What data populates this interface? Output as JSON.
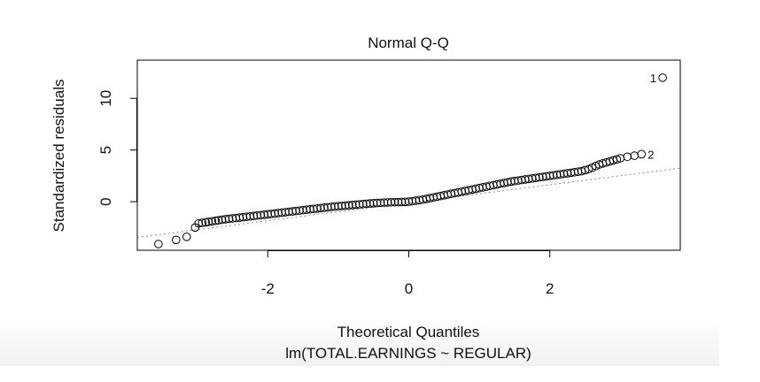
{
  "chart_data": {
    "type": "scatter",
    "title": "Normal Q-Q",
    "subtitle": "lm(TOTAL.EARNINGS ~ REGULAR)",
    "xlabel": "Theoretical Quantiles",
    "ylabel": "Standardized residuals",
    "xlim": [
      -3.85,
      3.85
    ],
    "ylim": [
      -4.7,
      13.7
    ],
    "x_ticks": [
      -2,
      0,
      2
    ],
    "x_tick_labels": [
      "-2",
      "0",
      "2"
    ],
    "y_ticks": [
      0,
      5,
      10
    ],
    "y_tick_labels": [
      "0",
      "5",
      "10"
    ],
    "grid": false,
    "reference_line": {
      "style": "dotted",
      "color": "#888888",
      "points": [
        [
          -3.85,
          -3.45
        ],
        [
          3.85,
          3.25
        ]
      ]
    },
    "series": [
      {
        "x": [
          -3.55,
          -3.3,
          -3.15,
          -3.03,
          -2.98,
          -2.93,
          -2.88,
          -2.84,
          -2.79,
          -2.74,
          -2.7,
          -2.65,
          -2.6,
          -2.55,
          -2.5,
          -2.45,
          -2.4,
          -2.35,
          -2.3,
          -2.25,
          -2.2,
          -2.15,
          -2.1,
          -2.05,
          -2.0,
          -1.95,
          -1.9,
          -1.85,
          -1.8,
          -1.75,
          -1.7,
          -1.65,
          -1.6,
          -1.55,
          -1.5,
          -1.45,
          -1.4,
          -1.35,
          -1.3,
          -1.25,
          -1.2,
          -1.15,
          -1.1,
          -1.05,
          -1.0,
          -0.95,
          -0.9,
          -0.85,
          -0.8,
          -0.75,
          -0.7,
          -0.65,
          -0.6,
          -0.55,
          -0.5,
          -0.45,
          -0.4,
          -0.35,
          -0.3,
          -0.25,
          -0.2,
          -0.15,
          -0.1,
          -0.05,
          0.0,
          0.05,
          0.1,
          0.15,
          0.2,
          0.25,
          0.3,
          0.35,
          0.4,
          0.45,
          0.5,
          0.55,
          0.6,
          0.65,
          0.7,
          0.75,
          0.8,
          0.85,
          0.9,
          0.95,
          1.0,
          1.05,
          1.1,
          1.15,
          1.2,
          1.25,
          1.3,
          1.35,
          1.4,
          1.45,
          1.5,
          1.55,
          1.6,
          1.65,
          1.7,
          1.75,
          1.8,
          1.85,
          1.9,
          1.95,
          2.0,
          2.05,
          2.1,
          2.15,
          2.2,
          2.25,
          2.3,
          2.35,
          2.4,
          2.45,
          2.5,
          2.55,
          2.6,
          2.65,
          2.7,
          2.75,
          2.8,
          2.85,
          2.9,
          2.95,
          3.0,
          3.1,
          3.2,
          3.3,
          3.6
        ],
        "y": [
          -4.1,
          -3.7,
          -3.4,
          -2.5,
          -2.1,
          -2.05,
          -2.0,
          -1.95,
          -1.9,
          -1.85,
          -1.8,
          -1.75,
          -1.7,
          -1.66,
          -1.62,
          -1.58,
          -1.54,
          -1.5,
          -1.46,
          -1.42,
          -1.38,
          -1.34,
          -1.3,
          -1.26,
          -1.22,
          -1.18,
          -1.14,
          -1.1,
          -1.06,
          -1.02,
          -0.98,
          -0.94,
          -0.9,
          -0.86,
          -0.82,
          -0.78,
          -0.74,
          -0.7,
          -0.66,
          -0.62,
          -0.58,
          -0.54,
          -0.5,
          -0.47,
          -0.44,
          -0.41,
          -0.38,
          -0.35,
          -0.32,
          -0.29,
          -0.26,
          -0.23,
          -0.2,
          -0.17,
          -0.15,
          -0.13,
          -0.11,
          -0.09,
          -0.07,
          -0.06,
          -0.05,
          -0.04,
          -0.03,
          -0.02,
          0.0,
          0.05,
          0.1,
          0.15,
          0.2,
          0.27,
          0.34,
          0.41,
          0.48,
          0.55,
          0.62,
          0.69,
          0.76,
          0.83,
          0.9,
          0.97,
          1.04,
          1.11,
          1.18,
          1.25,
          1.32,
          1.39,
          1.46,
          1.53,
          1.6,
          1.67,
          1.74,
          1.81,
          1.88,
          1.95,
          2.0,
          2.05,
          2.1,
          2.15,
          2.2,
          2.25,
          2.3,
          2.35,
          2.4,
          2.45,
          2.5,
          2.55,
          2.6,
          2.65,
          2.7,
          2.75,
          2.8,
          2.85,
          2.9,
          2.95,
          3.05,
          3.15,
          3.3,
          3.45,
          3.6,
          3.7,
          3.8,
          3.9,
          4.0,
          4.1,
          4.2,
          4.35,
          4.45,
          4.6,
          12.0
        ]
      }
    ],
    "annotations": [
      {
        "text": "1",
        "x": 3.6,
        "y": 12.0
      },
      {
        "text": "2",
        "x": 3.3,
        "y": 4.6
      }
    ]
  }
}
